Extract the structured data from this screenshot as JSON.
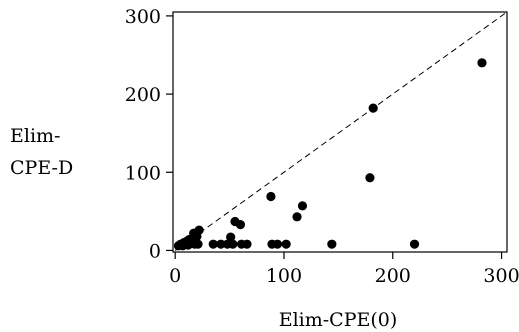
{
  "chart_data": {
    "type": "scatter",
    "title": "",
    "xlabel": "Elim-CPE(0)",
    "ylabel_lines": [
      "Elim-",
      "CPE-D"
    ],
    "xlim": [
      -2,
      305
    ],
    "ylim": [
      -2,
      305
    ],
    "x_ticks": [
      0,
      100,
      200,
      300
    ],
    "y_ticks": [
      0,
      100,
      200,
      300
    ],
    "grid": false,
    "legend": "none",
    "reference_line": {
      "style": "dashed",
      "description": "y = x",
      "from": [
        0,
        0
      ],
      "to": [
        305,
        305
      ]
    },
    "colors": {
      "points": "#000000",
      "axes": "#000000",
      "background": "#ffffff"
    },
    "points": [
      {
        "x": 3,
        "y": 6
      },
      {
        "x": 5,
        "y": 8
      },
      {
        "x": 7,
        "y": 6
      },
      {
        "x": 8,
        "y": 10
      },
      {
        "x": 10,
        "y": 8
      },
      {
        "x": 11,
        "y": 12
      },
      {
        "x": 12,
        "y": 7
      },
      {
        "x": 13,
        "y": 14
      },
      {
        "x": 15,
        "y": 10
      },
      {
        "x": 16,
        "y": 16
      },
      {
        "x": 17,
        "y": 22
      },
      {
        "x": 18,
        "y": 8
      },
      {
        "x": 20,
        "y": 18
      },
      {
        "x": 21,
        "y": 8
      },
      {
        "x": 22,
        "y": 26
      },
      {
        "x": 35,
        "y": 8
      },
      {
        "x": 42,
        "y": 8
      },
      {
        "x": 48,
        "y": 8
      },
      {
        "x": 51,
        "y": 17
      },
      {
        "x": 53,
        "y": 8
      },
      {
        "x": 55,
        "y": 37
      },
      {
        "x": 60,
        "y": 33
      },
      {
        "x": 61,
        "y": 8
      },
      {
        "x": 66,
        "y": 8
      },
      {
        "x": 88,
        "y": 69
      },
      {
        "x": 89,
        "y": 8
      },
      {
        "x": 94,
        "y": 8
      },
      {
        "x": 102,
        "y": 8
      },
      {
        "x": 112,
        "y": 43
      },
      {
        "x": 117,
        "y": 57
      },
      {
        "x": 144,
        "y": 8
      },
      {
        "x": 179,
        "y": 93
      },
      {
        "x": 182,
        "y": 182
      },
      {
        "x": 220,
        "y": 8
      },
      {
        "x": 282,
        "y": 240
      }
    ]
  }
}
